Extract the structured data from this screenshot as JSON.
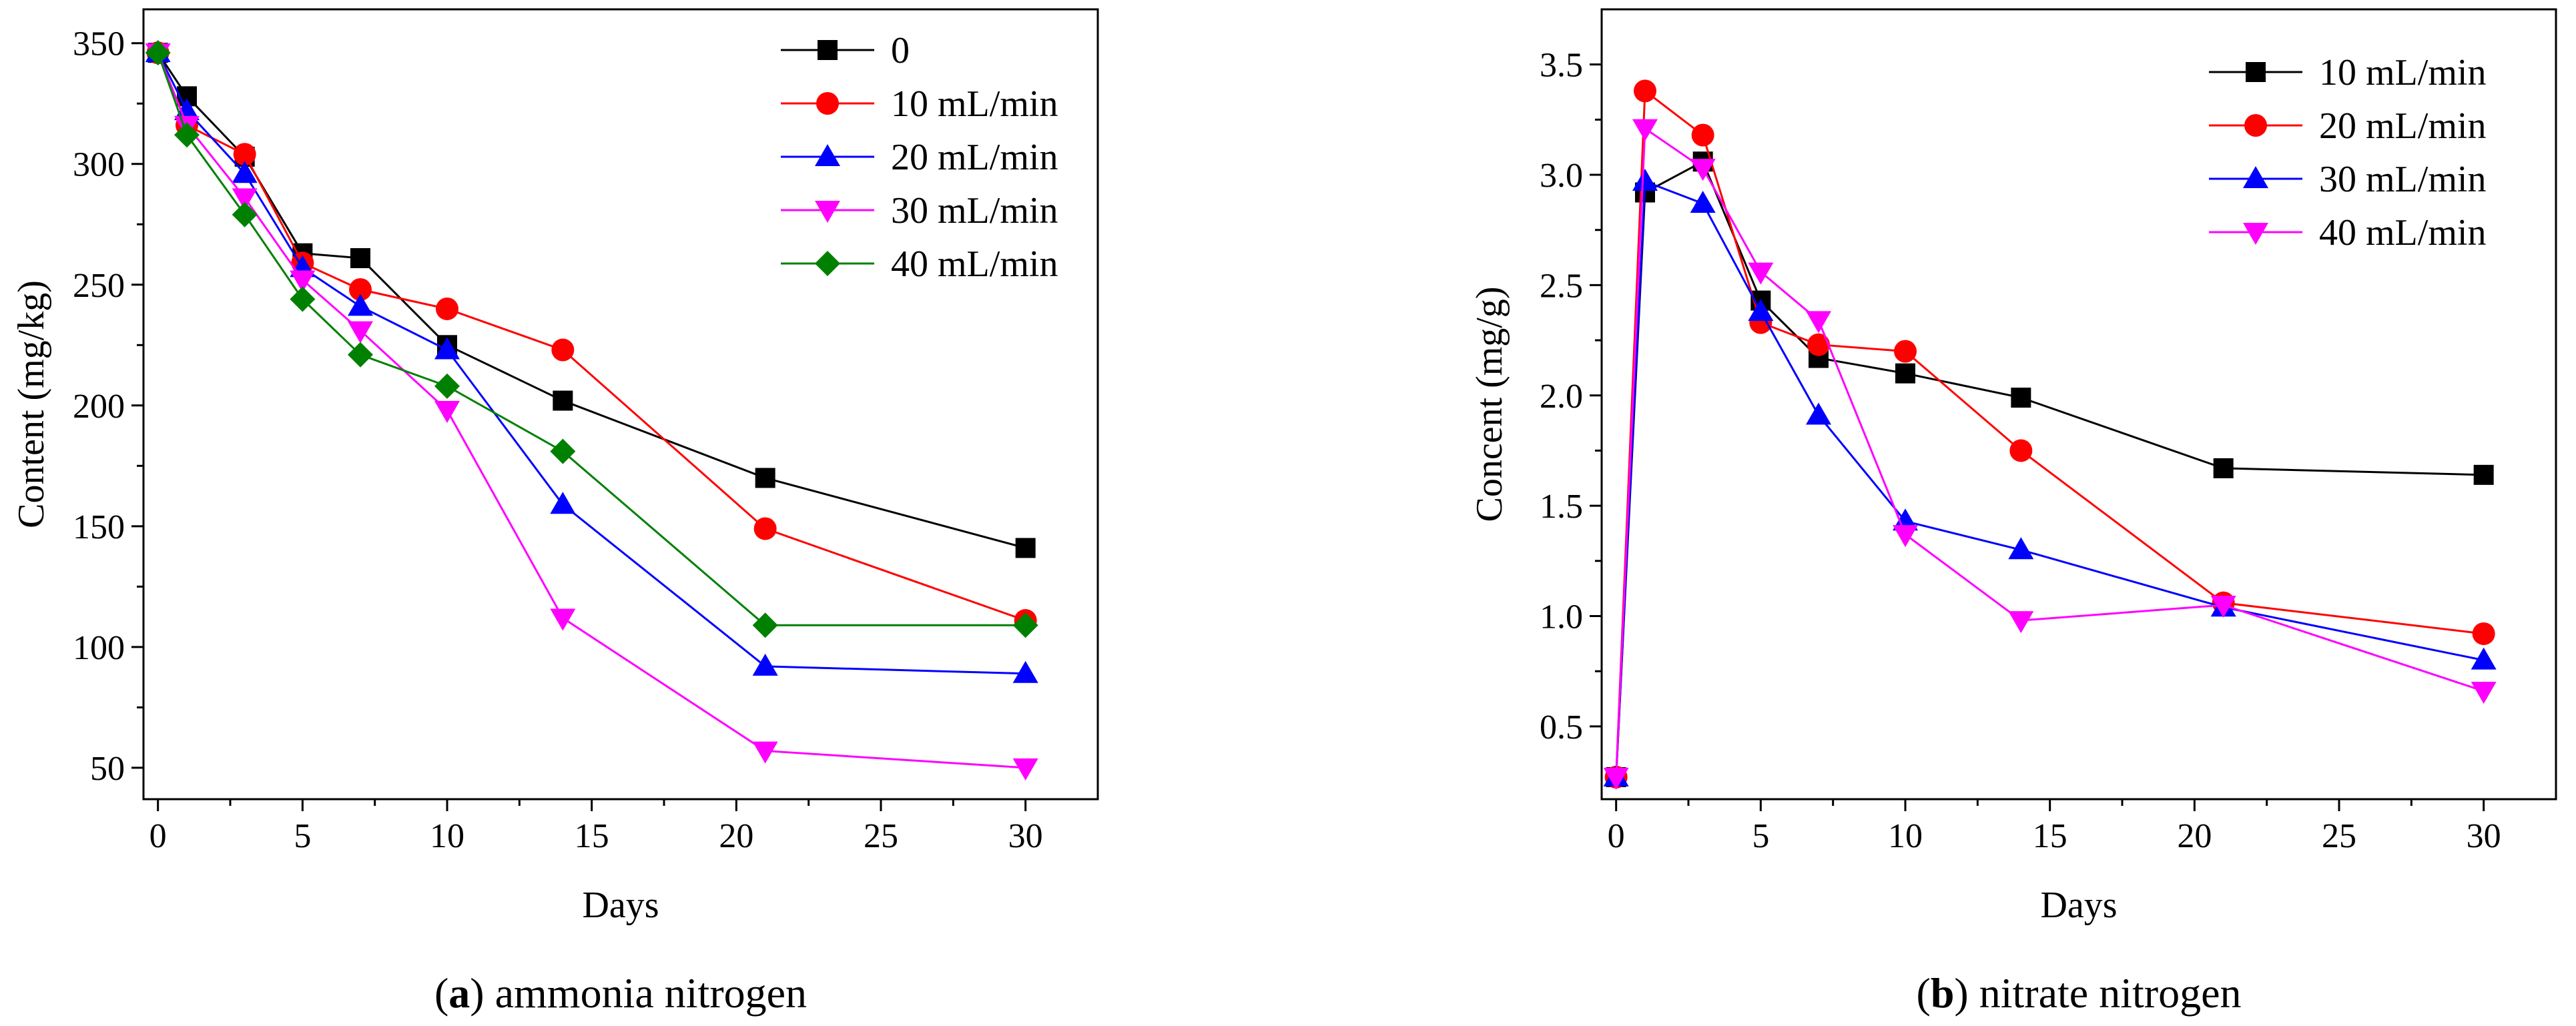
{
  "chart_data": [
    {
      "id": "a",
      "type": "line",
      "caption": {
        "letter": "a",
        "text": "ammonia nitrogen"
      },
      "xlabel": "Days",
      "ylabel": "Content (mg/kg)",
      "xlim": [
        -0.5,
        32.5
      ],
      "ylim": [
        37,
        364
      ],
      "xticks": [
        0,
        5,
        10,
        15,
        20,
        25,
        30
      ],
      "yticks": [
        50,
        100,
        150,
        200,
        250,
        300,
        350
      ],
      "grid": false,
      "legend_position": "top-right",
      "x": [
        0,
        1,
        3,
        5,
        7,
        10,
        14,
        21,
        30
      ],
      "series": [
        {
          "name": "0",
          "color": "#000000",
          "marker": "square",
          "values": [
            346,
            328,
            303,
            263,
            261,
            225,
            202,
            170,
            141
          ]
        },
        {
          "name": "10 mL/min",
          "color": "#ff0000",
          "marker": "circle",
          "values": [
            346,
            316,
            304,
            259,
            248,
            240,
            223,
            149,
            111
          ]
        },
        {
          "name": "20 mL/min",
          "color": "#0000ff",
          "marker": "triangle-up",
          "values": [
            346,
            322,
            296,
            257,
            241,
            223,
            159,
            92,
            89
          ]
        },
        {
          "name": "30 mL/min",
          "color": "#ff00ff",
          "marker": "triangle-down",
          "values": [
            346,
            316,
            286,
            252,
            231,
            198,
            112,
            57,
            50
          ]
        },
        {
          "name": "40 mL/min",
          "color": "#008000",
          "marker": "diamond",
          "values": [
            346,
            312,
            279,
            244,
            221,
            208,
            181,
            109,
            109
          ]
        }
      ]
    },
    {
      "id": "b",
      "type": "line",
      "caption": {
        "letter": "b",
        "text": "nitrate nitrogen"
      },
      "xlabel": "Days",
      "ylabel": "Concent (mg/g)",
      "xlim": [
        -0.5,
        32.5
      ],
      "ylim": [
        0.17,
        3.75
      ],
      "xticks": [
        0,
        5,
        10,
        15,
        20,
        25,
        30
      ],
      "yticks": [
        0.5,
        1.0,
        1.5,
        2.0,
        2.5,
        3.0,
        3.5
      ],
      "yticklabels": [
        "0.5",
        "1.0",
        "1.5",
        "2.0",
        "2.5",
        "3.0",
        "3.5"
      ],
      "grid": false,
      "legend_position": "top-right",
      "x": [
        0,
        1,
        3,
        5,
        7,
        10,
        14,
        21,
        30
      ],
      "series": [
        {
          "name": "10 mL/min",
          "color": "#000000",
          "marker": "square",
          "values": [
            0.27,
            2.92,
            3.06,
            2.43,
            2.17,
            2.1,
            1.99,
            1.67,
            1.64
          ]
        },
        {
          "name": "20 mL/min",
          "color": "#ff0000",
          "marker": "circle",
          "values": [
            0.27,
            3.38,
            3.18,
            2.33,
            2.23,
            2.2,
            1.75,
            1.06,
            0.92
          ]
        },
        {
          "name": "30 mL/min",
          "color": "#0000ff",
          "marker": "triangle-up",
          "values": [
            0.27,
            2.97,
            2.87,
            2.38,
            1.91,
            1.43,
            1.3,
            1.04,
            0.8
          ]
        },
        {
          "name": "40 mL/min",
          "color": "#ff00ff",
          "marker": "triangle-down",
          "values": [
            0.27,
            3.21,
            3.03,
            2.56,
            2.34,
            1.37,
            0.98,
            1.05,
            0.66
          ]
        }
      ]
    }
  ]
}
